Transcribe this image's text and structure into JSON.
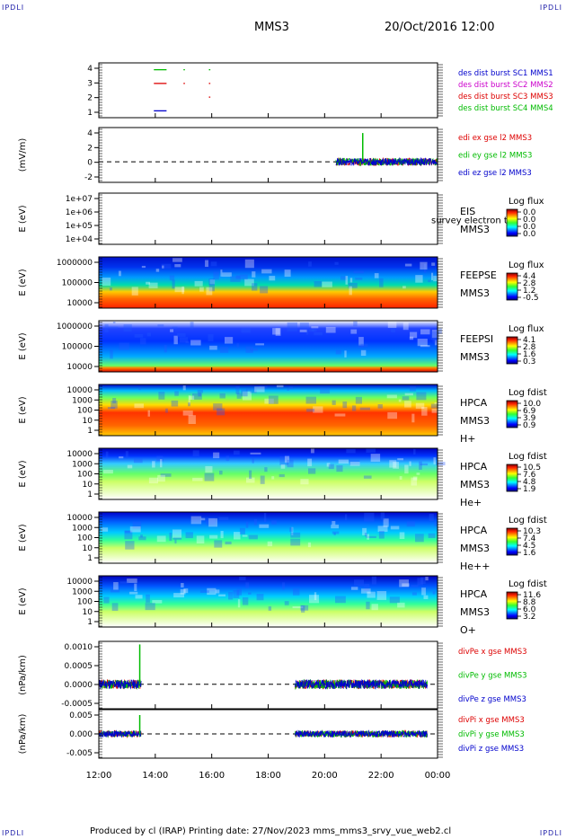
{
  "corners": {
    "tl": "IPDLI",
    "tr": "IPDLI",
    "bl": "IPDLI",
    "br": "IPDLI"
  },
  "header": {
    "mission": "MMS3",
    "datetime": "20/Oct/2016 12:00"
  },
  "footer": {
    "text": "Produced by cl (IRAP)   Printing date: 27/Nov/2023   mms_mms3_srvy_vue_web2.cl"
  },
  "colors": {
    "blue": "#0000cc",
    "red": "#dd0000",
    "green": "#00bb00",
    "magenta": "#cc00cc"
  },
  "chart_data": {
    "type": "line",
    "xaxis": {
      "ticks": [
        "12:00",
        "14:00",
        "16:00",
        "18:00",
        "20:00",
        "22:00",
        "00:00"
      ],
      "range_hours": [
        12,
        24
      ]
    },
    "panels": [
      {
        "id": "burst",
        "type": "scatter",
        "ylabel": "",
        "yticks": [
          "4",
          "3",
          "2",
          "1"
        ],
        "ylim": [
          0.5,
          4.5
        ],
        "legend": [
          {
            "text": "des dist burst SC1 MMS1",
            "color": "#0000cc"
          },
          {
            "text": "des dist burst SC2 MMS2",
            "color": "#cc00cc"
          },
          {
            "text": "des dist burst SC3 MMS3",
            "color": "#dd0000"
          },
          {
            "text": "des dist burst SC4 MMS4",
            "color": "#00bb00"
          }
        ],
        "segments": [
          {
            "level": 4,
            "color": "#00bb00",
            "spans": [
              [
                13.95,
                14.4
              ],
              [
                15.0,
                15.05
              ],
              [
                15.9,
                15.95
              ]
            ]
          },
          {
            "level": 3,
            "color": "#dd0000",
            "spans": [
              [
                13.95,
                14.4
              ],
              [
                15.0,
                15.05
              ],
              [
                15.9,
                15.95
              ]
            ]
          },
          {
            "level": 2,
            "color": "#dd0000",
            "spans": [
              [
                15.9,
                15.95
              ]
            ]
          },
          {
            "level": 1,
            "color": "#0000cc",
            "spans": [
              [
                13.95,
                14.4
              ]
            ]
          }
        ]
      },
      {
        "id": "edi",
        "type": "line",
        "ylabel": "(mV/m)",
        "yticks": [
          "4",
          "2",
          "0",
          "-2"
        ],
        "ylim": [
          -3,
          5
        ],
        "zero_line": true,
        "legend": [
          {
            "text": "edi ex gse l2 MMS3",
            "color": "#dd0000"
          },
          {
            "text": "edi ey gse l2 MMS3",
            "color": "#00bb00"
          },
          {
            "text": "edi ez gse l2 MMS3",
            "color": "#0000cc"
          }
        ],
        "active": [
          [
            20.4,
            24.0
          ]
        ],
        "spike": {
          "t": 21.35,
          "value": 4.2
        }
      },
      {
        "id": "eis",
        "type": "heatmap",
        "ylabel": "E (eV)",
        "yticks": [
          "1e+07",
          "1e+06",
          "1e+05",
          "1e+04"
        ],
        "labels": [
          "EIS",
          "MMS3"
        ],
        "overlay": "survey electron to",
        "cbar": {
          "title": "Log flux",
          "ticks": [
            "0.0",
            "0.0",
            "0.0",
            "0.0"
          ]
        }
      },
      {
        "id": "feepse",
        "type": "heatmap",
        "ylabel": "E (eV)",
        "yticks": [
          "1000000",
          "100000",
          "10000"
        ],
        "labels": [
          "FEEPSE",
          "MMS3"
        ],
        "cbar": {
          "title": "Log flux",
          "ticks": [
            "4.4",
            "2.8",
            "1.2",
            "-0.5"
          ]
        }
      },
      {
        "id": "feepsi",
        "type": "heatmap",
        "ylabel": "E (eV)",
        "yticks": [
          "1000000",
          "100000",
          "10000"
        ],
        "labels": [
          "FEEPSI",
          "MMS3"
        ],
        "cbar": {
          "title": "Log flux",
          "ticks": [
            "4.1",
            "2.8",
            "1.6",
            "0.3"
          ]
        }
      },
      {
        "id": "hpca_h",
        "type": "heatmap",
        "ylabel": "E (eV)",
        "yticks": [
          "10000",
          "1000",
          "100",
          "10",
          "1"
        ],
        "labels": [
          "HPCA",
          "MMS3",
          "H+"
        ],
        "cbar": {
          "title": "Log fdist",
          "ticks": [
            "10.0",
            "6.9",
            "3.9",
            "0.9"
          ]
        }
      },
      {
        "id": "hpca_he",
        "type": "heatmap",
        "ylabel": "E (eV)",
        "yticks": [
          "10000",
          "1000",
          "100",
          "10",
          "1"
        ],
        "labels": [
          "HPCA",
          "MMS3",
          "He+"
        ],
        "cbar": {
          "title": "Log fdist",
          "ticks": [
            "10.5",
            "7.6",
            "4.8",
            "1.9"
          ]
        }
      },
      {
        "id": "hpca_hepp",
        "type": "heatmap",
        "ylabel": "E (eV)",
        "yticks": [
          "10000",
          "1000",
          "100",
          "10",
          "1"
        ],
        "labels": [
          "HPCA",
          "MMS3",
          "He++"
        ],
        "cbar": {
          "title": "Log fdist",
          "ticks": [
            "10.3",
            "7.4",
            "4.5",
            "1.6"
          ]
        }
      },
      {
        "id": "hpca_o",
        "type": "heatmap",
        "ylabel": "E (eV)",
        "yticks": [
          "10000",
          "1000",
          "100",
          "10",
          "1"
        ],
        "labels": [
          "HPCA",
          "MMS3",
          "O+"
        ],
        "cbar": {
          "title": "Log fdist",
          "ticks": [
            "11.6",
            "8.8",
            "6.0",
            "3.2"
          ]
        }
      },
      {
        "id": "divpe",
        "type": "line",
        "ylabel": "(nPa/km)",
        "yticks": [
          "0.0010",
          "0.0005",
          "0.0000",
          "-0.0005"
        ],
        "ylim": [
          -0.0008,
          0.0014
        ],
        "zero_line": true,
        "legend": [
          {
            "text": "divPe x gse MMS3",
            "color": "#dd0000"
          },
          {
            "text": "divPe y gse MMS3",
            "color": "#00bb00"
          },
          {
            "text": "divPe z gse MMS3",
            "color": "#0000cc"
          }
        ],
        "active": [
          [
            12.0,
            13.5
          ],
          [
            18.95,
            23.65
          ]
        ],
        "spike": {
          "t": 13.45,
          "value": 0.0013
        }
      },
      {
        "id": "divpi",
        "type": "line",
        "ylabel": "(nPa/km)",
        "yticks": [
          "0.005",
          "0.000",
          "-0.005"
        ],
        "ylim": [
          -0.009,
          0.009
        ],
        "zero_line": true,
        "legend": [
          {
            "text": "divPi x gse MMS3",
            "color": "#dd0000"
          },
          {
            "text": "divPi y gse MMS3",
            "color": "#00bb00"
          },
          {
            "text": "divPi z gse MMS3",
            "color": "#0000cc"
          }
        ],
        "active": [
          [
            12.0,
            13.5
          ],
          [
            18.95,
            23.65
          ]
        ],
        "spike": {
          "t": 13.45,
          "value": 0.007
        }
      }
    ]
  }
}
